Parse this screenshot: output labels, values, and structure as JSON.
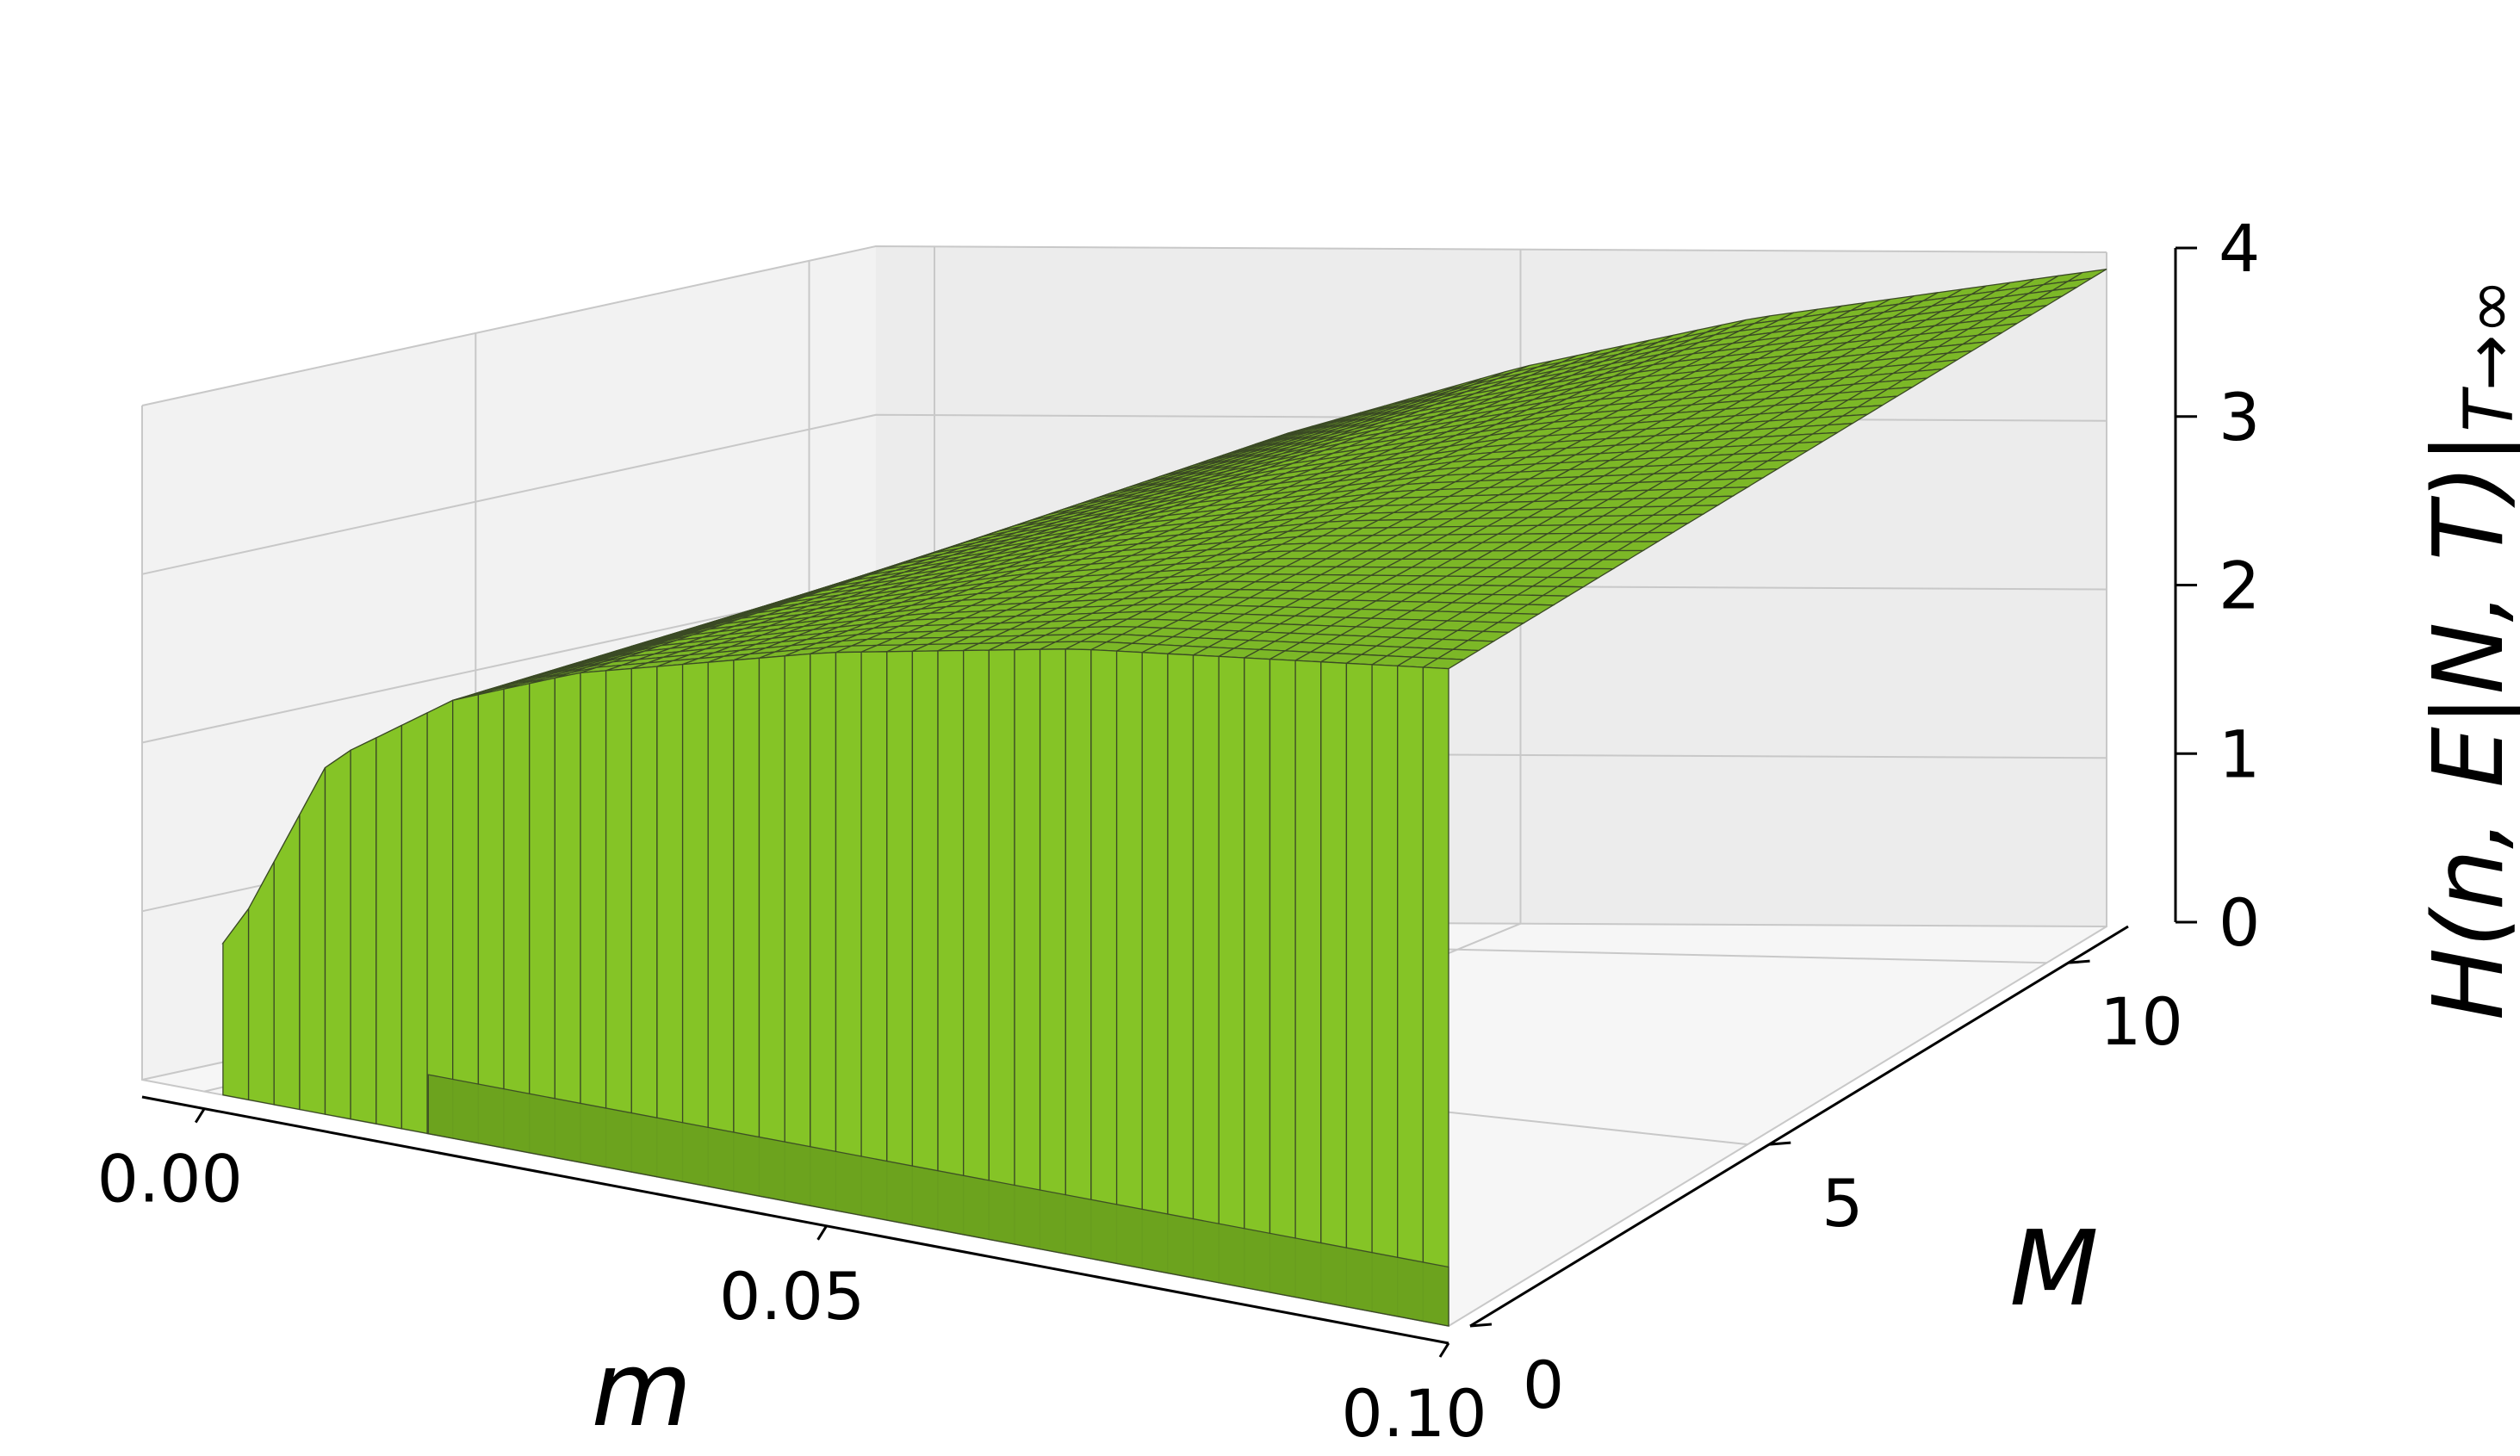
{
  "chart_data": {
    "type": "surface",
    "xlabel": "m",
    "ylabel": "M",
    "zlabel_main": "H(n, E|N, T)|",
    "zlabel_sub": "T→∞",
    "x_ticks": [
      "0.00",
      "0.05",
      "0.10"
    ],
    "y_ticks": [
      "0",
      "5",
      "10"
    ],
    "z_ticks": [
      "0",
      "1",
      "2",
      "3",
      "4"
    ],
    "xlim": [
      -0.005,
      0.1
    ],
    "ylim": [
      0,
      11
    ],
    "zlim": [
      0,
      4
    ],
    "x_range": [
      0.0015,
      0.1
    ],
    "y_range": [
      0,
      11
    ],
    "grid": true,
    "surface_color": "#7cb827",
    "surface_dark_color": "#6ba21e",
    "surface_light_color": "#85c426",
    "edge_color": "#3b4a25",
    "pane_color": "#f2f2f2",
    "surface_samples": {
      "m": [
        0.002,
        0.01,
        0.02,
        0.03,
        0.05,
        0.07,
        0.1
      ],
      "H": [
        0.9,
        2.1,
        2.6,
        2.9,
        3.3,
        3.6,
        3.9
      ]
    }
  }
}
